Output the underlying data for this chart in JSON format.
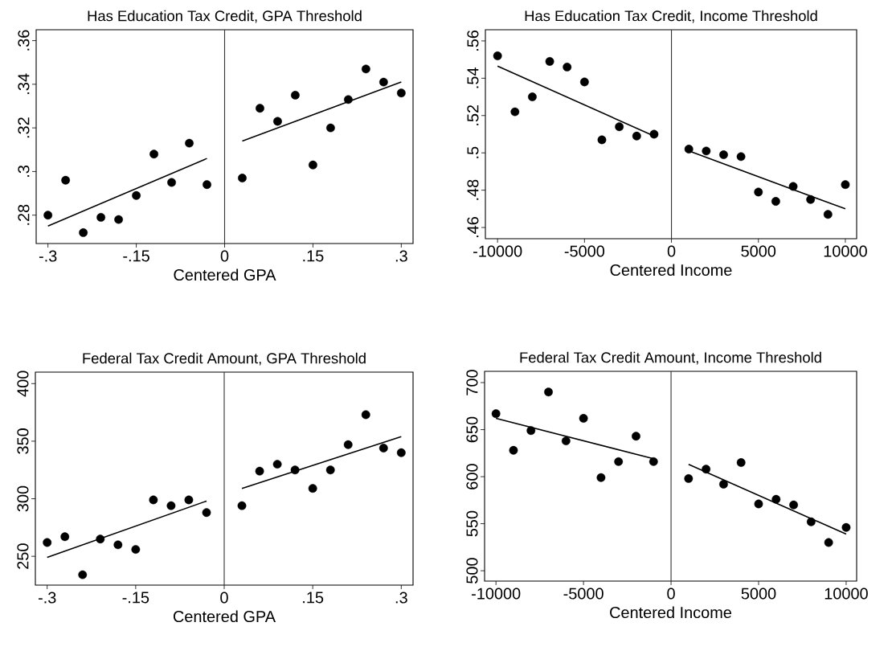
{
  "chart_data": [
    {
      "type": "scatter",
      "title": "Has Education Tax Credit, GPA Threshold",
      "xlabel": "Centered GPA",
      "marker": "circle",
      "xlim": [
        -0.32,
        0.32
      ],
      "ylim": [
        0.267,
        0.365
      ],
      "xticks": [
        {
          "value": -0.3,
          "label": "-.3"
        },
        {
          "value": -0.15,
          "label": "-.15"
        },
        0,
        {
          "value": 0.15,
          "label": ".15"
        },
        {
          "value": 0.3,
          "label": ".3"
        }
      ],
      "yticks": [
        {
          "value": 0.28,
          "label": ".28"
        },
        {
          "value": 0.3,
          "label": ".3"
        },
        {
          "value": 0.32,
          "label": ".32"
        },
        {
          "value": 0.34,
          "label": ".34"
        },
        {
          "value": 0.36,
          "label": ".36"
        }
      ],
      "ref_lines": [
        {
          "axis": "x",
          "value": 0,
          "color": "#333333"
        }
      ],
      "series": [
        {
          "type": "scatter",
          "color": "#000000",
          "x": [
            -0.3,
            -0.27,
            -0.24,
            -0.21,
            -0.18,
            -0.15,
            -0.12,
            -0.09,
            -0.06,
            -0.03
          ],
          "values": [
            0.28,
            0.296,
            0.272,
            0.279,
            0.278,
            0.289,
            0.308,
            0.295,
            0.313,
            0.294
          ]
        },
        {
          "type": "scatter",
          "color": "#000000",
          "x": [
            0.03,
            0.06,
            0.09,
            0.12,
            0.15,
            0.18,
            0.21,
            0.24,
            0.27,
            0.3
          ],
          "values": [
            0.297,
            0.329,
            0.323,
            0.335,
            0.303,
            0.32,
            0.333,
            0.347,
            0.341,
            0.336
          ]
        },
        {
          "type": "line",
          "marker": "none",
          "color": "#000000",
          "x": [
            -0.3,
            -0.03
          ],
          "values": [
            0.275,
            0.306
          ]
        },
        {
          "type": "line",
          "marker": "none",
          "color": "#000000",
          "x": [
            0.03,
            0.3
          ],
          "values": [
            0.314,
            0.341
          ]
        }
      ]
    },
    {
      "type": "scatter",
      "title": "Has Education Tax Credit, Income Threshold",
      "xlabel": "Centered Income",
      "marker": "circle",
      "xlim": [
        -10700,
        10650
      ],
      "ylim": [
        0.454,
        0.566
      ],
      "xticks": [
        -10000,
        -5000,
        0,
        5000,
        10000
      ],
      "yticks": [
        {
          "value": 0.46,
          "label": ".46"
        },
        {
          "value": 0.48,
          "label": ".48"
        },
        {
          "value": 0.5,
          "label": ".5"
        },
        {
          "value": 0.52,
          "label": ".52"
        },
        {
          "value": 0.54,
          "label": ".54"
        },
        {
          "value": 0.56,
          "label": ".56"
        }
      ],
      "ref_lines": [
        {
          "axis": "x",
          "value": 0,
          "color": "#333333"
        }
      ],
      "series": [
        {
          "type": "scatter",
          "color": "#000000",
          "x": [
            -10000,
            -9000,
            -8000,
            -7000,
            -6000,
            -5000,
            -4000,
            -3000,
            -2000,
            -1000
          ],
          "values": [
            0.552,
            0.522,
            0.53,
            0.549,
            0.546,
            0.538,
            0.507,
            0.514,
            0.509,
            0.51
          ]
        },
        {
          "type": "scatter",
          "color": "#000000",
          "x": [
            1000,
            2000,
            3000,
            4000,
            5000,
            6000,
            7000,
            8000,
            9000,
            10000
          ],
          "values": [
            0.502,
            0.501,
            0.499,
            0.498,
            0.479,
            0.474,
            0.482,
            0.475,
            0.467,
            0.483
          ]
        },
        {
          "type": "line",
          "marker": "none",
          "color": "#000000",
          "x": [
            -10000,
            -1000
          ],
          "values": [
            0.5465,
            0.509
          ]
        },
        {
          "type": "line",
          "marker": "none",
          "color": "#000000",
          "x": [
            1000,
            10000
          ],
          "values": [
            0.501,
            0.47
          ]
        }
      ]
    },
    {
      "type": "scatter",
      "title": "Federal Tax Credit Amount, GPA Threshold",
      "xlabel": "Centered GPA",
      "marker": "circle",
      "xlim": [
        -0.32,
        0.32
      ],
      "ylim": [
        225,
        410
      ],
      "xticks": [
        {
          "value": -0.3,
          "label": "-.3"
        },
        {
          "value": -0.15,
          "label": "-.15"
        },
        0,
        {
          "value": 0.15,
          "label": ".15"
        },
        {
          "value": 0.3,
          "label": ".3"
        }
      ],
      "yticks": [
        250,
        300,
        350,
        400
      ],
      "ref_lines": [
        {
          "axis": "x",
          "value": 0,
          "color": "#333333"
        }
      ],
      "series": [
        {
          "type": "scatter",
          "color": "#000000",
          "x": [
            -0.3,
            -0.27,
            -0.24,
            -0.21,
            -0.18,
            -0.15,
            -0.12,
            -0.09,
            -0.06,
            -0.03
          ],
          "values": [
            262,
            267,
            234,
            265,
            260,
            256,
            299,
            294,
            299,
            288
          ]
        },
        {
          "type": "scatter",
          "color": "#000000",
          "x": [
            0.03,
            0.06,
            0.09,
            0.12,
            0.15,
            0.18,
            0.21,
            0.24,
            0.27,
            0.3
          ],
          "values": [
            294,
            324,
            330,
            325,
            309,
            325,
            347,
            373,
            344,
            340
          ]
        },
        {
          "type": "line",
          "marker": "none",
          "color": "#000000",
          "x": [
            -0.3,
            -0.03
          ],
          "values": [
            249,
            298
          ]
        },
        {
          "type": "line",
          "marker": "none",
          "color": "#000000",
          "x": [
            0.03,
            0.3
          ],
          "values": [
            309,
            354
          ]
        }
      ]
    },
    {
      "type": "scatter",
      "title": "Federal Tax Credit Amount, Income Threshold",
      "xlabel": "Centered Income",
      "marker": "circle",
      "xlim": [
        -10650,
        10600
      ],
      "ylim": [
        489,
        712
      ],
      "xticks": [
        -10000,
        -5000,
        0,
        5000,
        10000
      ],
      "yticks": [
        500,
        550,
        600,
        650,
        700
      ],
      "ref_lines": [
        {
          "axis": "x",
          "value": 0,
          "color": "#333333"
        }
      ],
      "series": [
        {
          "type": "scatter",
          "color": "#000000",
          "x": [
            -10000,
            -9000,
            -8000,
            -7000,
            -6000,
            -5000,
            -4000,
            -3000,
            -2000,
            -1000
          ],
          "values": [
            667,
            628,
            649,
            690,
            638,
            662,
            599,
            616,
            643,
            616
          ]
        },
        {
          "type": "scatter",
          "color": "#000000",
          "x": [
            1000,
            2000,
            3000,
            4000,
            5000,
            6000,
            7000,
            8000,
            9000,
            10000
          ],
          "values": [
            598,
            608,
            592,
            615,
            571,
            576,
            570,
            552,
            530,
            546
          ]
        },
        {
          "type": "line",
          "marker": "none",
          "color": "#000000",
          "x": [
            -10000,
            -1000
          ],
          "values": [
            662,
            619
          ]
        },
        {
          "type": "line",
          "marker": "none",
          "color": "#000000",
          "x": [
            1000,
            10000
          ],
          "values": [
            613,
            539
          ]
        }
      ]
    }
  ]
}
